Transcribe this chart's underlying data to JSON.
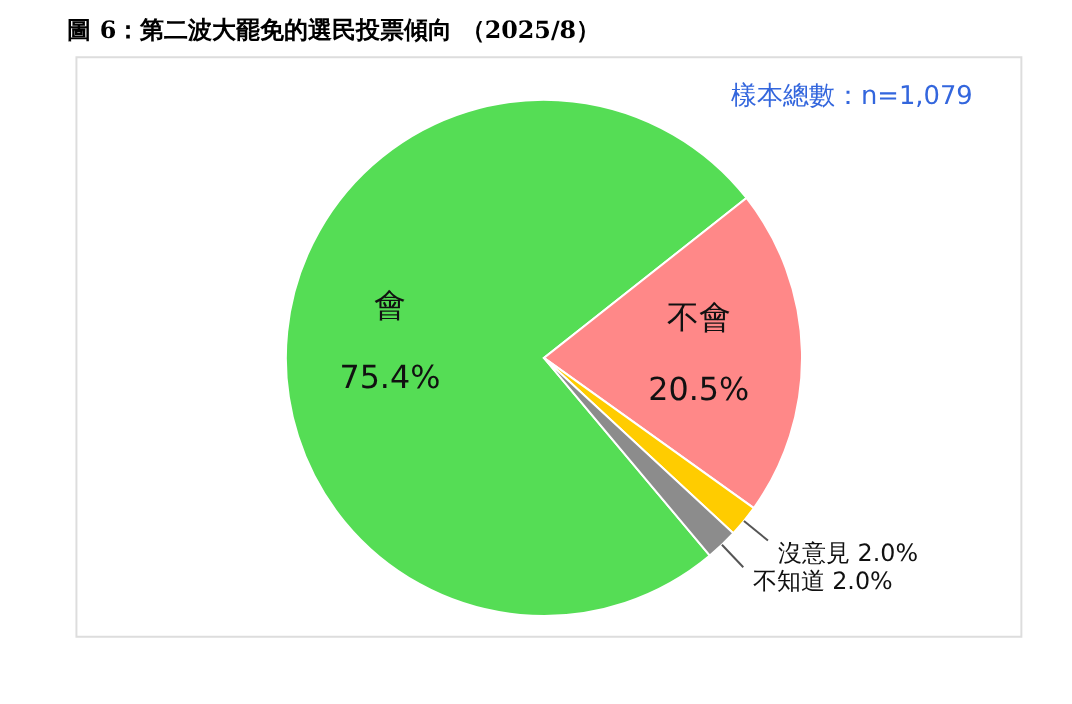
{
  "chart_data": {
    "type": "pie",
    "title": "圖 6：第二波大罷免的選民投票傾向 （2025/8）",
    "categories": [
      "會",
      "不會",
      "沒意見",
      "不知道"
    ],
    "values": [
      75.4,
      20.5,
      2.0,
      2.0
    ],
    "colors": [
      "#55dd55",
      "#ff8888",
      "#ffcc00",
      "#8c8c8c"
    ],
    "value_labels": [
      "75.4%",
      "20.5%",
      "2.0%",
      "2.0%"
    ],
    "annotations": [
      "樣本總數：n=1,079"
    ]
  }
}
